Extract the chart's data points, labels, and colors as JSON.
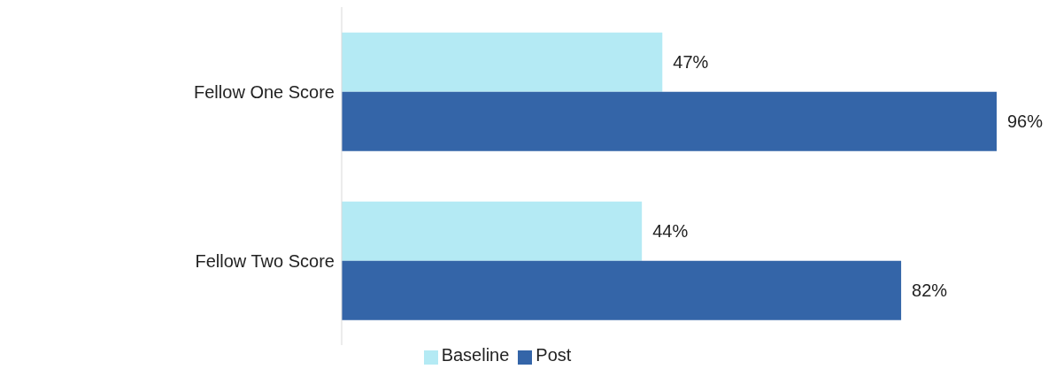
{
  "chart_data": {
    "type": "bar",
    "orientation": "horizontal",
    "categories": [
      "Fellow One Score",
      "Fellow Two Score"
    ],
    "series": [
      {
        "name": "Baseline",
        "color": "#b4eaf4",
        "values": [
          47,
          44
        ],
        "value_labels": [
          "47%",
          "44%"
        ]
      },
      {
        "name": "Post",
        "color": "#3465a8",
        "values": [
          96,
          82
        ],
        "value_labels": [
          "96%",
          "82%"
        ]
      }
    ],
    "tick_labels": "y",
    "legend": "bottom"
  }
}
